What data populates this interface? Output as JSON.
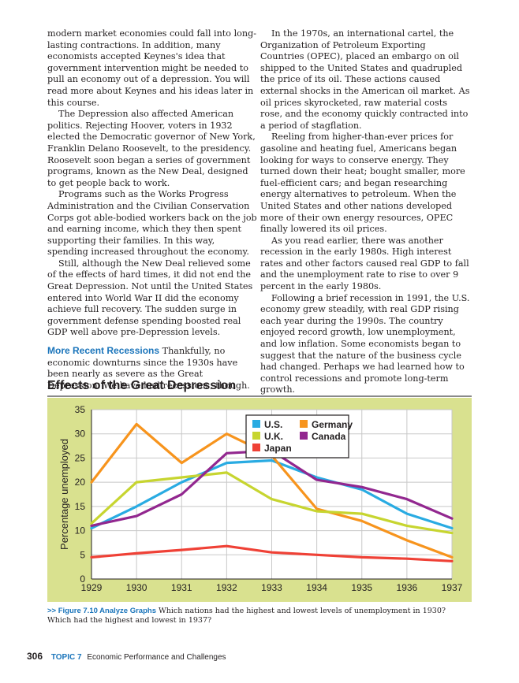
{
  "left_column": {
    "paragraphs": [
      "modern market economies could fall into long-lasting contractions. In addition, many economists accepted Keynes's idea that government intervention might be needed to pull an economy out of a depression. You will read more about Keynes and his ideas later in this course.",
      "The Depression also affected American politics. Rejecting Hoover, voters in 1932 elected the Democratic governor of New York, Franklin Delano Roosevelt, to the presidency. Roosevelt soon began a series of government programs, known as the New Deal, designed to get people back to work.",
      "Programs such as the Works Progress Administration and the Civilian Conservation Corps got able-bodied workers back on the job and earning income, which they then spent supporting their families. In this way, spending increased throughout the economy.",
      "Still, although the New Deal relieved some of the effects of hard times, it did not end the Great Depression. Not until the United States entered into World War II did the economy achieve full recovery. The sudden surge in government defense spending boosted real GDP well above pre-Depression levels."
    ],
    "section_heading": "More Recent Recessions",
    "section_text": " Thankfully, no economic downturns since the 1930s have been nearly as severe as the Great Depression. We have had recessions, though."
  },
  "right_column": {
    "paragraphs": [
      "In the 1970s, an international cartel, the Organization of Petroleum Exporting Countries (OPEC), placed an embargo on oil shipped to the United States and quadrupled the price of its oil. These actions caused external shocks in the American oil market. As oil prices skyrocketed, raw material costs rose, and the economy quickly contracted into a period of stagflation.",
      "Reeling from higher-than-ever prices for gasoline and heating fuel, Americans began looking for ways to conserve energy. They turned down their heat; bought smaller, more fuel-efficient cars; and began researching energy alternatives to petroleum. When the United States and other nations developed more of their own energy resources, OPEC finally lowered its oil prices.",
      "As you read earlier, there was another recession in the early 1980s. High interest rates and other factors caused real GDP to fall and the unemployment rate to rise to over 9 percent in the early 1980s.",
      "Following a brief recession in 1991, the U.S. economy grew steadily, with real GDP rising each year during the 1990s. The country enjoyed record growth, low unemployment, and low inflation. Some economists began to suggest that the nature of the business cycle had changed. Perhaps we had learned how to control recessions and promote long-term growth."
    ]
  },
  "figure": {
    "title": "Effects of the Great Depression",
    "caption_label": ">> Figure 7.10 Analyze Graphs",
    "caption_text": " Which nations had the highest and lowest levels of unemployment in 1930? Which had the highest and lowest in 1937?"
  },
  "footer": {
    "page_number": "306",
    "topic": "TOPIC 7",
    "topic_title": "Economic Performance and Challenges"
  },
  "chart_data": {
    "type": "line",
    "title": "Effects of the Great Depression",
    "xlabel": "",
    "ylabel": "Percentage unemployed",
    "x": [
      "1929",
      "1930",
      "1931",
      "1932",
      "1933",
      "1934",
      "1935",
      "1936",
      "1937"
    ],
    "ylim": [
      0,
      35
    ],
    "yticks": [
      "0",
      "5",
      "10",
      "15",
      "20",
      "25",
      "30",
      "35"
    ],
    "grid": true,
    "legend_position": "top-right",
    "series": [
      {
        "name": "U.S.",
        "color": "#29abe2",
        "values": [
          10.5,
          15,
          20,
          24,
          24.5,
          21,
          18.5,
          13.5,
          10.5
        ]
      },
      {
        "name": "Germany",
        "color": "#f7941d",
        "values": [
          20,
          32,
          24,
          30,
          25.5,
          14.5,
          12,
          8,
          4.5
        ]
      },
      {
        "name": "U.K.",
        "color": "#c7d530",
        "values": [
          11.5,
          20,
          21,
          22,
          16.5,
          14,
          13.5,
          11,
          9.5
        ]
      },
      {
        "name": "Canada",
        "color": "#92278f",
        "values": [
          11,
          13,
          17.5,
          26,
          26.5,
          20.5,
          19,
          16.5,
          12.5
        ]
      },
      {
        "name": "Japan",
        "color": "#ef4136",
        "values": [
          4.5,
          5.3,
          6,
          6.8,
          5.5,
          5,
          4.5,
          4.2,
          3.7
        ]
      }
    ],
    "colors": {
      "plot_background": "#ffffff",
      "frame_background": "#d9e18f",
      "grid": "#c8c8c8"
    }
  }
}
